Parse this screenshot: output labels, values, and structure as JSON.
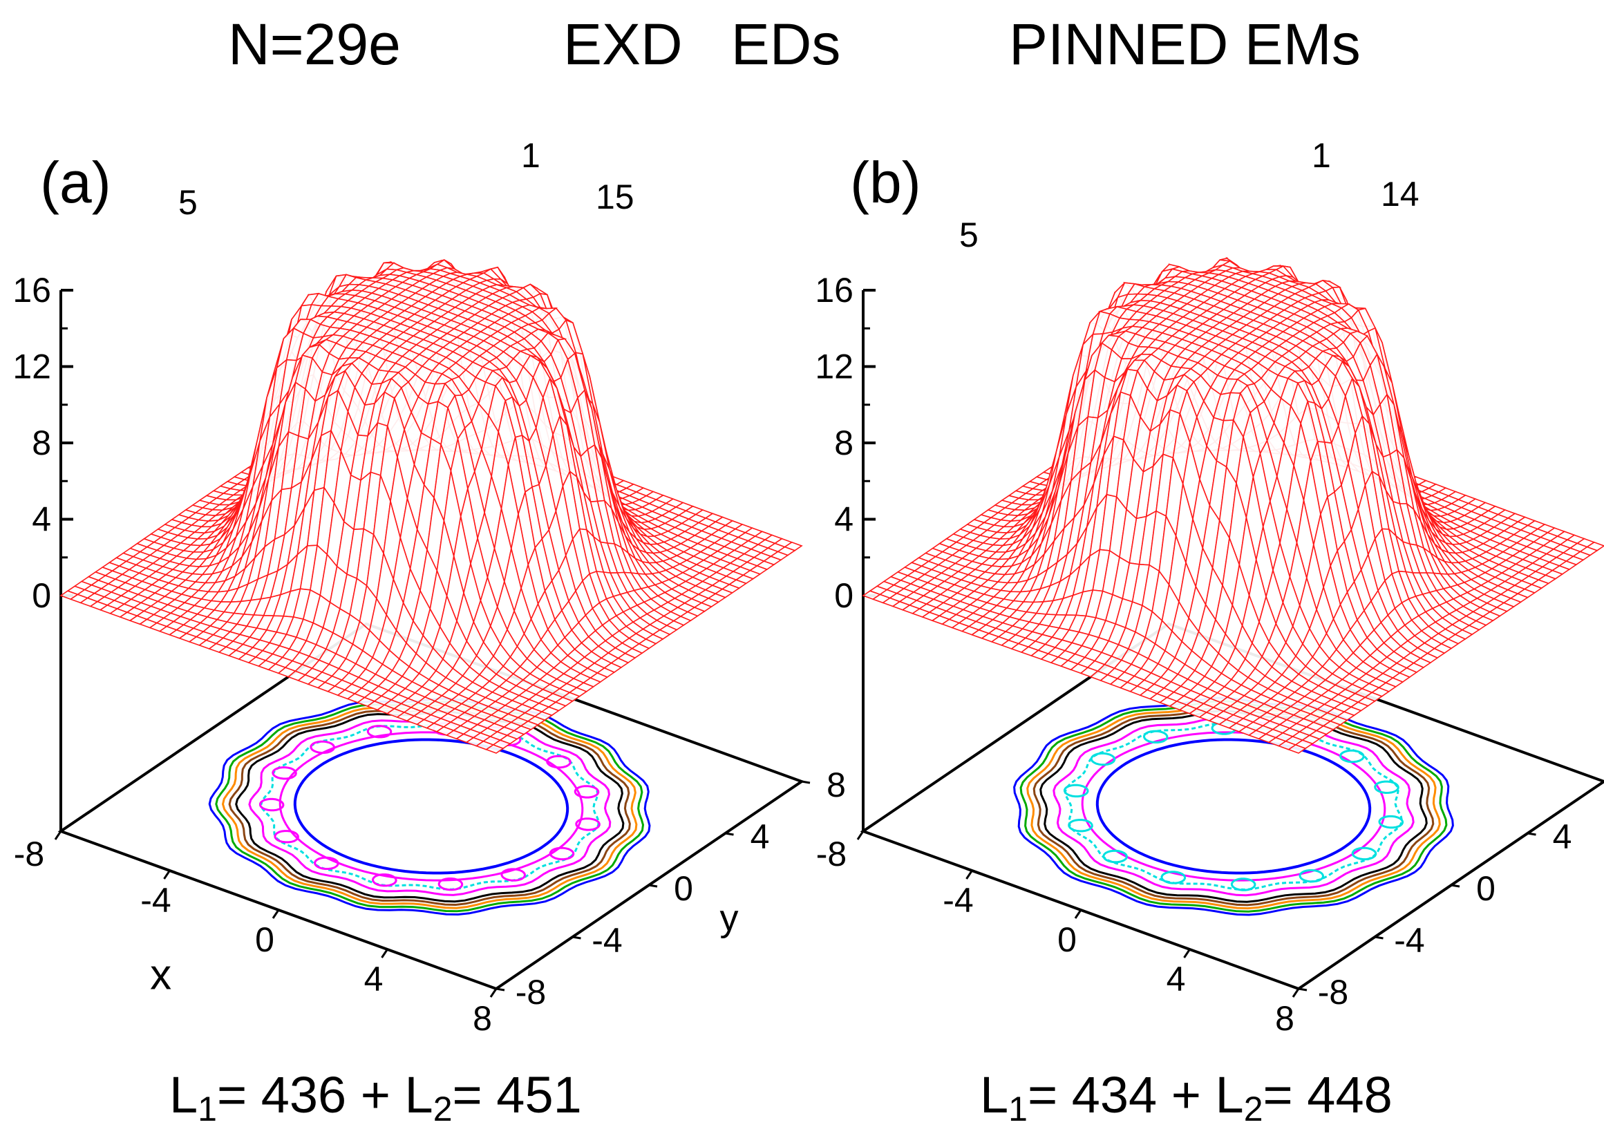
{
  "header": {
    "n_label": "N=29e",
    "method_label": "EXD   EDs",
    "pinned_label": "PINNED EMs"
  },
  "chart_data": [
    {
      "type": "surface3d",
      "panel_label": "(a)",
      "zlabel_ticks": [
        "16",
        "12",
        "8",
        "4",
        "0"
      ],
      "z_ticks": [
        16,
        12,
        8,
        4,
        0
      ],
      "zlim": [
        0,
        16
      ],
      "x_ticks": [
        "-8",
        "-4",
        "0",
        "4",
        "8"
      ],
      "y_ticks": [
        "-8",
        "-4",
        "0",
        "4",
        "8"
      ],
      "xlabel": "x",
      "ylabel": "y",
      "peak_labels": {
        "left": "5",
        "top": "1",
        "right": "15"
      },
      "n_peaks_ring": 15,
      "caption": {
        "l1_prefix": "L",
        "l1_sub": "1",
        "l1_value": "= 436 + ",
        "l2_prefix": "L",
        "l2_sub": "2",
        "l2_value": "= 451"
      },
      "contour_colors": [
        "#0000ff",
        "#ff00ff",
        "#00e0e0",
        "#ff00ff",
        "#000000",
        "#8b4513",
        "#ff8c00",
        "#00aa00",
        "#0000ff"
      ]
    },
    {
      "type": "surface3d",
      "panel_label": "(b)",
      "zlabel_ticks": [
        "16",
        "12",
        "8",
        "4",
        "0"
      ],
      "z_ticks": [
        16,
        12,
        8,
        4,
        0
      ],
      "zlim": [
        0,
        16
      ],
      "x_ticks": [
        "-8",
        "-4",
        "0",
        "4",
        "8"
      ],
      "y_ticks": [
        "-8",
        "-4",
        "0",
        "4",
        "8"
      ],
      "xlabel": "",
      "ylabel": "",
      "peak_labels": {
        "left": "5",
        "top": "1",
        "right": "14"
      },
      "n_peaks_ring": 14,
      "caption": {
        "l1_prefix": "L",
        "l1_sub": "1",
        "l1_value": "= 434 + ",
        "l2_prefix": "L",
        "l2_sub": "2",
        "l2_value": "= 448"
      },
      "contour_colors": [
        "#0000ff",
        "#ff00ff",
        "#00e0e0",
        "#ff00ff",
        "#000000",
        "#8b4513",
        "#ff8c00",
        "#00aa00",
        "#0000ff"
      ]
    }
  ]
}
